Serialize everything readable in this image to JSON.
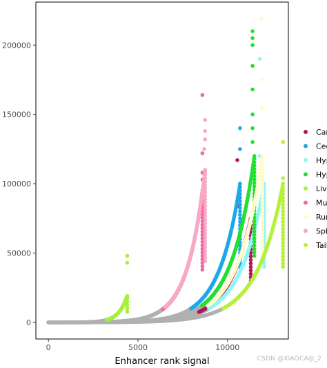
{
  "chart_data": {
    "type": "scatter",
    "title": "",
    "xlabel": "Enhancer rank signal",
    "ylabel": "",
    "xlim": [
      -700,
      13400
    ],
    "ylim": [
      -12000,
      231000
    ],
    "x_ticks": [
      0,
      5000,
      10000
    ],
    "x_tick_labels": [
      "0",
      "5000",
      "10000"
    ],
    "y_ticks": [
      0,
      50000,
      100000,
      150000,
      200000
    ],
    "y_tick_labels": [
      "0",
      "50000",
      "100000",
      "150000",
      "200000"
    ],
    "grid": false,
    "legend_position": "right",
    "background_points_color": "#b0b0b0",
    "series": [
      {
        "name": "Car",
        "color": "#b5125e",
        "n": 11300,
        "ymax": 75000,
        "outliers": [
          [
            10600,
            84000
          ],
          [
            10550,
            117000
          ]
        ]
      },
      {
        "name": "Cec",
        "color": "#1ea8e6",
        "n": 10700,
        "ymax": 100000,
        "outliers": [
          [
            10700,
            125000
          ],
          [
            10700,
            140000
          ]
        ]
      },
      {
        "name": "Hyp",
        "color": "#8ff6f6",
        "n": 12050,
        "ymax": 100000,
        "outliers": [
          [
            11800,
            120000
          ],
          [
            11800,
            190000
          ]
        ]
      },
      {
        "name": "Hyp",
        "color": "#22e02e",
        "n": 11500,
        "ymax": 120000,
        "outliers": [
          [
            11400,
            130000
          ],
          [
            11400,
            140000
          ],
          [
            11400,
            150000
          ],
          [
            11400,
            168000
          ],
          [
            11400,
            185000
          ],
          [
            11400,
            200000
          ],
          [
            11400,
            205000
          ],
          [
            11400,
            210000
          ]
        ]
      },
      {
        "name": "Live",
        "color": "#a6f03a",
        "n": 4400,
        "ymax": 19000,
        "outliers": [
          [
            4400,
            43000
          ],
          [
            4400,
            48000
          ]
        ]
      },
      {
        "name": "Mus",
        "color": "#ea6aa8",
        "n": 8600,
        "ymax": 95000,
        "outliers": [
          [
            8600,
            103000
          ],
          [
            8600,
            108000
          ],
          [
            8600,
            122000
          ],
          [
            8600,
            164000
          ]
        ]
      },
      {
        "name": "Run",
        "color": "#fffccc",
        "n": 11950,
        "ymax": 120000,
        "outliers": [
          [
            11900,
            155000
          ],
          [
            11900,
            175000
          ],
          [
            11900,
            219000
          ]
        ]
      },
      {
        "name": "Sple",
        "color": "#f9a8c2",
        "n": 8750,
        "ymax": 110000,
        "outliers": [
          [
            8700,
            125000
          ],
          [
            8750,
            132000
          ],
          [
            8750,
            138000
          ],
          [
            8750,
            146000
          ]
        ]
      },
      {
        "name": "Tail",
        "color": "#b5f03c",
        "n": 13100,
        "ymax": 100000,
        "outliers": [
          [
            13100,
            104000
          ],
          [
            13100,
            130000
          ]
        ]
      }
    ]
  },
  "watermark": "CSDN @XIAOCAIJI_2"
}
